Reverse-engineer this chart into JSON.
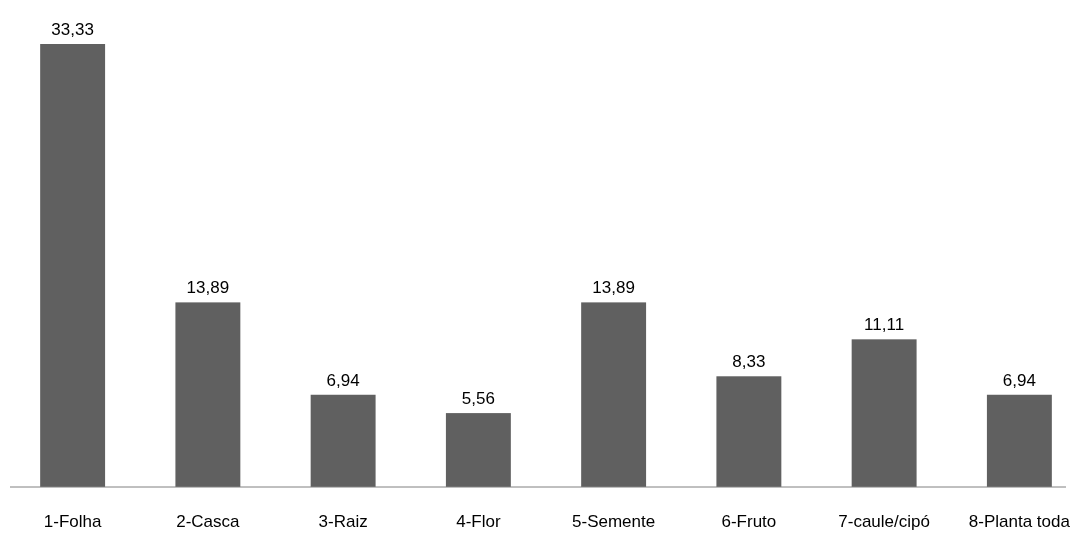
{
  "chart_data": {
    "type": "bar",
    "categories": [
      "1-Folha",
      "2-Casca",
      "3-Raiz",
      "4-Flor",
      "5-Semente",
      "6-Fruto",
      "7-caule/cipó",
      "8-Planta toda"
    ],
    "values": [
      33.33,
      13.89,
      6.94,
      5.56,
      13.89,
      8.33,
      11.11,
      6.94
    ],
    "value_labels": [
      "33,33",
      "13,89",
      "6,94",
      "5,56",
      "13,89",
      "8,33",
      "11,11",
      "6,94"
    ],
    "color": "#606060"
  }
}
